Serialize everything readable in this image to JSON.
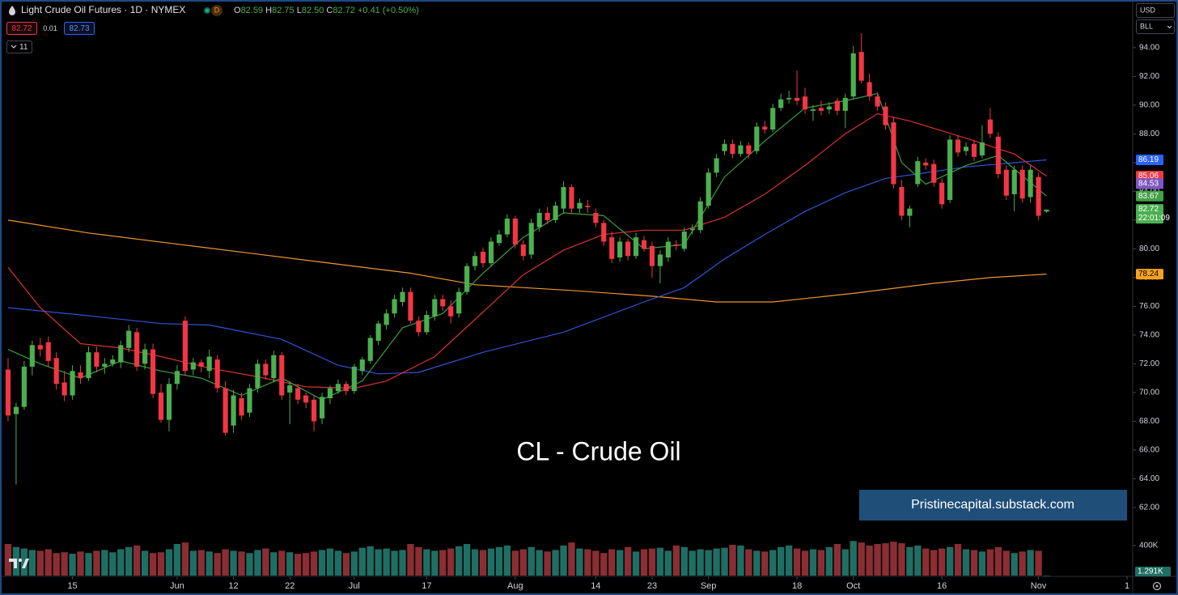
{
  "toolbar": {
    "title": "Light Crude Oil Futures · 1D · NYMEX",
    "interval_badge": "D",
    "ohlc": [
      {
        "label": "O",
        "value": "82.59"
      },
      {
        "label": "H",
        "value": "82.75"
      },
      {
        "label": "L",
        "value": "82.50"
      },
      {
        "label": "C",
        "value": "82.72"
      }
    ],
    "change": "+0.41 (+0.50%)",
    "bid": "82.72",
    "spread": "0.01",
    "ask": "82.73",
    "indicators_count": "11",
    "currency": "USD",
    "unit": "BLL"
  },
  "chart_data": {
    "type": "candlestick",
    "title": "CL - Crude Oil",
    "annotation": "Pristinecapital.substack.com",
    "up_color": "#4caf50",
    "down_color": "#f23645",
    "volume_up_color": "#1f6e64",
    "volume_down_color": "#8a2e33",
    "xlim": [
      -0.6,
      139.7
    ],
    "xticks": [
      {
        "value": 8,
        "label": "15"
      },
      {
        "value": 21,
        "label": "Jun"
      },
      {
        "value": 28,
        "label": "12"
      },
      {
        "value": 35,
        "label": "22"
      },
      {
        "value": 43,
        "label": "Jul"
      },
      {
        "value": 52,
        "label": "17"
      },
      {
        "value": 63,
        "label": "Aug"
      },
      {
        "value": 73,
        "label": "14"
      },
      {
        "value": 80,
        "label": "23"
      },
      {
        "value": 87,
        "label": "Sep"
      },
      {
        "value": 98,
        "label": "18"
      },
      {
        "value": 105,
        "label": "Oct"
      },
      {
        "value": 116,
        "label": "16"
      },
      {
        "value": 128,
        "label": "Nov"
      },
      {
        "value": 139,
        "label": "1"
      }
    ],
    "ylim": [
      60.7,
      97.2
    ],
    "yticks": [
      {
        "value": 62,
        "label": "62.00"
      },
      {
        "value": 64,
        "label": "64.00"
      },
      {
        "value": 66,
        "label": "66.00"
      },
      {
        "value": 68,
        "label": "68.00"
      },
      {
        "value": 70,
        "label": "70.00"
      },
      {
        "value": 72,
        "label": "72.00"
      },
      {
        "value": 74,
        "label": "74.00"
      },
      {
        "value": 76,
        "label": "76.00"
      },
      {
        "value": 78,
        "label": "78.00"
      },
      {
        "value": 80,
        "label": "80.00"
      },
      {
        "value": 82,
        "label": "82.00"
      },
      {
        "value": 84,
        "label": "84.00"
      },
      {
        "value": 86,
        "label": "86.00"
      },
      {
        "value": 88,
        "label": "88.00"
      },
      {
        "value": 90,
        "label": "90.00"
      },
      {
        "value": 92,
        "label": "92.00"
      },
      {
        "value": 94,
        "label": "94.00"
      }
    ],
    "candles": [
      [
        71.6,
        72.4,
        68.0,
        68.4
      ],
      [
        68.5,
        69.3,
        63.6,
        69.0
      ],
      [
        69.0,
        72.2,
        68.8,
        71.8
      ],
      [
        71.8,
        73.6,
        71.2,
        73.3
      ],
      [
        73.3,
        73.8,
        72.5,
        73.0
      ],
      [
        73.5,
        73.9,
        71.8,
        72.2
      ],
      [
        72.4,
        72.8,
        70.2,
        70.6
      ],
      [
        70.7,
        71.5,
        69.4,
        69.8
      ],
      [
        69.8,
        71.9,
        69.5,
        71.5
      ],
      [
        71.4,
        71.9,
        70.6,
        71.0
      ],
      [
        71.0,
        73.2,
        70.8,
        72.8
      ],
      [
        72.8,
        73.2,
        71.4,
        71.8
      ],
      [
        71.8,
        72.4,
        71.3,
        72.0
      ],
      [
        72.0,
        72.6,
        71.8,
        72.3
      ],
      [
        72.1,
        73.6,
        71.7,
        73.3
      ],
      [
        73.1,
        74.7,
        72.8,
        74.3
      ],
      [
        74.2,
        74.5,
        71.5,
        71.8
      ],
      [
        72.0,
        73.4,
        71.6,
        73.0
      ],
      [
        73.0,
        73.4,
        69.6,
        69.9
      ],
      [
        70.0,
        70.6,
        67.9,
        68.1
      ],
      [
        68.1,
        71.0,
        67.3,
        70.6
      ],
      [
        70.6,
        71.9,
        70.2,
        71.5
      ],
      [
        75.0,
        75.3,
        71.2,
        71.5
      ],
      [
        71.6,
        72.4,
        71.2,
        72.1
      ],
      [
        72.1,
        72.3,
        71.4,
        71.8
      ],
      [
        71.5,
        73.0,
        71.0,
        72.5
      ],
      [
        72.3,
        72.6,
        70.0,
        70.3
      ],
      [
        70.3,
        70.8,
        67.0,
        67.2
      ],
      [
        67.7,
        70.2,
        67.2,
        69.8
      ],
      [
        69.6,
        70.0,
        68.1,
        68.4
      ],
      [
        68.6,
        70.6,
        68.3,
        70.3
      ],
      [
        70.3,
        72.3,
        70.0,
        72.0
      ],
      [
        72.0,
        72.3,
        70.9,
        71.2
      ],
      [
        71.0,
        72.9,
        70.7,
        72.6
      ],
      [
        72.6,
        72.8,
        69.5,
        69.8
      ],
      [
        70.0,
        70.8,
        67.8,
        70.5
      ],
      [
        70.3,
        70.6,
        69.2,
        69.5
      ],
      [
        69.8,
        70.0,
        68.9,
        69.3
      ],
      [
        69.5,
        69.8,
        67.3,
        68.0
      ],
      [
        68.2,
        70.0,
        67.8,
        69.7
      ],
      [
        69.6,
        70.5,
        69.2,
        70.3
      ],
      [
        70.1,
        70.9,
        69.9,
        70.6
      ],
      [
        70.6,
        70.8,
        69.8,
        70.1
      ],
      [
        70.1,
        72.0,
        69.9,
        71.8
      ],
      [
        71.5,
        72.5,
        71.2,
        72.3
      ],
      [
        72.2,
        74.0,
        72.0,
        73.8
      ],
      [
        73.6,
        75.0,
        73.3,
        74.8
      ],
      [
        74.7,
        75.8,
        74.4,
        75.5
      ],
      [
        75.5,
        76.8,
        75.2,
        76.5
      ],
      [
        76.3,
        77.3,
        76.0,
        77.0
      ],
      [
        77.0,
        77.3,
        74.8,
        75.0
      ],
      [
        75.0,
        75.3,
        73.9,
        74.2
      ],
      [
        74.2,
        75.7,
        74.0,
        75.4
      ],
      [
        75.3,
        76.8,
        75.0,
        76.5
      ],
      [
        76.5,
        76.8,
        75.7,
        76.0
      ],
      [
        76.0,
        76.4,
        74.8,
        75.3
      ],
      [
        75.5,
        77.3,
        75.2,
        77.0
      ],
      [
        77.0,
        79.0,
        76.8,
        78.8
      ],
      [
        78.8,
        79.8,
        78.5,
        79.5
      ],
      [
        79.8,
        80.1,
        78.7,
        79.0
      ],
      [
        79.0,
        80.8,
        78.8,
        80.5
      ],
      [
        80.4,
        81.3,
        80.2,
        81.0
      ],
      [
        81.0,
        82.4,
        80.8,
        82.1
      ],
      [
        82.1,
        82.3,
        80.0,
        80.3
      ],
      [
        80.3,
        80.6,
        79.2,
        79.5
      ],
      [
        79.6,
        82.1,
        79.3,
        81.8
      ],
      [
        81.5,
        82.8,
        81.2,
        82.5
      ],
      [
        82.5,
        82.9,
        81.7,
        82.0
      ],
      [
        82.0,
        83.3,
        81.8,
        83.0
      ],
      [
        82.8,
        84.7,
        82.5,
        84.3
      ],
      [
        84.3,
        84.5,
        82.5,
        82.8
      ],
      [
        82.8,
        83.5,
        82.5,
        83.2
      ],
      [
        83.0,
        83.4,
        82.5,
        82.9
      ],
      [
        82.5,
        82.8,
        81.5,
        81.8
      ],
      [
        81.8,
        82.0,
        80.2,
        80.5
      ],
      [
        80.8,
        81.2,
        79.0,
        79.3
      ],
      [
        79.4,
        80.8,
        79.1,
        80.5
      ],
      [
        80.5,
        80.7,
        79.2,
        79.5
      ],
      [
        79.5,
        81.1,
        79.3,
        80.8
      ],
      [
        80.6,
        80.9,
        79.8,
        80.0
      ],
      [
        80.2,
        80.5,
        78.0,
        78.8
      ],
      [
        78.8,
        79.9,
        77.6,
        79.6
      ],
      [
        79.4,
        80.8,
        79.1,
        80.5
      ],
      [
        80.3,
        80.6,
        79.9,
        80.2
      ],
      [
        80.0,
        81.5,
        79.8,
        81.2
      ],
      [
        81.3,
        81.7,
        81.0,
        81.4
      ],
      [
        81.3,
        83.6,
        81.1,
        83.3
      ],
      [
        83.0,
        85.6,
        82.8,
        85.3
      ],
      [
        85.3,
        86.6,
        85.0,
        86.3
      ],
      [
        86.8,
        87.6,
        86.5,
        87.3
      ],
      [
        87.3,
        87.6,
        86.3,
        86.6
      ],
      [
        86.6,
        87.5,
        86.4,
        87.2
      ],
      [
        87.2,
        87.4,
        86.3,
        86.6
      ],
      [
        86.8,
        88.8,
        86.6,
        88.5
      ],
      [
        88.5,
        88.9,
        88.0,
        88.3
      ],
      [
        88.3,
        90.1,
        88.1,
        89.8
      ],
      [
        89.8,
        90.8,
        89.6,
        90.4
      ],
      [
        90.4,
        91.0,
        90.1,
        90.5
      ],
      [
        90.5,
        92.4,
        90.0,
        90.3
      ],
      [
        90.6,
        91.2,
        89.4,
        89.7
      ],
      [
        89.6,
        90.0,
        88.9,
        89.7
      ],
      [
        89.8,
        90.3,
        89.3,
        89.6
      ],
      [
        89.7,
        90.2,
        89.4,
        89.9
      ],
      [
        90.3,
        90.5,
        89.3,
        89.6
      ],
      [
        89.6,
        90.8,
        88.4,
        90.5
      ],
      [
        90.6,
        94.1,
        90.4,
        93.6
      ],
      [
        93.7,
        95.0,
        91.5,
        91.7
      ],
      [
        91.6,
        92.2,
        90.3,
        90.6
      ],
      [
        90.6,
        90.9,
        89.6,
        89.9
      ],
      [
        89.9,
        90.2,
        88.3,
        88.6
      ],
      [
        88.8,
        89.2,
        84.2,
        84.5
      ],
      [
        84.3,
        84.8,
        82.0,
        82.3
      ],
      [
        82.3,
        83.0,
        81.5,
        82.8
      ],
      [
        84.5,
        86.4,
        84.3,
        86.1
      ],
      [
        86.0,
        86.3,
        85.5,
        85.8
      ],
      [
        85.9,
        86.2,
        84.3,
        84.6
      ],
      [
        84.6,
        84.9,
        82.8,
        83.1
      ],
      [
        83.4,
        87.9,
        83.2,
        87.6
      ],
      [
        87.6,
        87.9,
        86.4,
        86.7
      ],
      [
        86.8,
        87.4,
        86.5,
        87.1
      ],
      [
        87.3,
        87.6,
        86.1,
        86.4
      ],
      [
        86.5,
        88.6,
        86.3,
        87.4
      ],
      [
        89.0,
        89.8,
        87.7,
        88.0
      ],
      [
        87.8,
        88.1,
        84.9,
        85.2
      ],
      [
        85.5,
        85.8,
        83.4,
        83.7
      ],
      [
        83.8,
        85.8,
        82.6,
        85.5
      ],
      [
        85.5,
        85.8,
        83.2,
        83.5
      ],
      [
        83.6,
        85.8,
        83.2,
        85.5
      ],
      [
        85.0,
        85.3,
        82.0,
        82.3
      ],
      [
        82.59,
        82.75,
        82.5,
        82.72
      ]
    ],
    "volume": [
      420000,
      380000,
      360000,
      340000,
      330000,
      350000,
      300000,
      310000,
      290000,
      320000,
      300000,
      330000,
      340000,
      310000,
      350000,
      380000,
      400000,
      330000,
      300000,
      310000,
      350000,
      420000,
      440000,
      330000,
      340000,
      320000,
      300000,
      350000,
      330000,
      320000,
      300000,
      340000,
      360000,
      310000,
      330000,
      310000,
      290000,
      300000,
      320000,
      340000,
      360000,
      330000,
      300000,
      320000,
      370000,
      390000,
      350000,
      360000,
      330000,
      340000,
      420000,
      380000,
      350000,
      330000,
      340000,
      360000,
      390000,
      420000,
      350000,
      340000,
      360000,
      380000,
      400000,
      330000,
      350000,
      380000,
      340000,
      320000,
      340000,
      400000,
      440000,
      360000,
      350000,
      330000,
      300000,
      350000,
      340000,
      380000,
      320000,
      350000,
      360000,
      370000,
      330000,
      400000,
      380000,
      330000,
      350000,
      340000,
      360000,
      370000,
      410000,
      400000,
      350000,
      330000,
      320000,
      340000,
      380000,
      400000,
      360000,
      330000,
      350000,
      340000,
      380000,
      420000,
      350000,
      460000,
      440000,
      400000,
      420000,
      430000,
      450000,
      430000,
      380000,
      400000,
      360000,
      340000,
      360000,
      380000,
      420000,
      350000,
      340000,
      320000,
      350000,
      380000,
      330000,
      300000,
      320000,
      340000,
      330000,
      1291
    ],
    "volume_ylim": [
      0,
      560000
    ],
    "volume_yticks": [
      {
        "value": 400000,
        "label": "400K"
      }
    ],
    "volume_last_label": "1.291K",
    "moving_averages": [
      {
        "color": "#f0962c",
        "x": [
          0,
          10,
          20,
          30,
          40,
          50,
          58,
          70,
          80,
          88,
          95,
          105,
          115,
          122,
          129
        ],
        "values": [
          82.0,
          81.1,
          80.4,
          79.7,
          79.0,
          78.3,
          77.5,
          77.1,
          76.7,
          76.3,
          76.3,
          76.9,
          77.6,
          78.0,
          78.24
        ]
      },
      {
        "color": "#2f54d6",
        "x": [
          0,
          9,
          19,
          25,
          34,
          41,
          46,
          51,
          59,
          69,
          79,
          84,
          89,
          94,
          99,
          104,
          109,
          119,
          129
        ],
        "values": [
          75.9,
          75.4,
          74.8,
          74.7,
          73.7,
          71.9,
          71.3,
          71.4,
          72.8,
          74.2,
          76.3,
          77.3,
          79.3,
          81.0,
          82.6,
          83.9,
          84.9,
          85.7,
          86.19
        ]
      },
      {
        "color": "#d8332f",
        "x": [
          0,
          4,
          9,
          14,
          19,
          25,
          31,
          37,
          43,
          47,
          53,
          59,
          64,
          69,
          74,
          79,
          84,
          89,
          94,
          99,
          104,
          108,
          112,
          119,
          125,
          129
        ],
        "values": [
          78.7,
          75.9,
          73.4,
          73.1,
          72.5,
          71.7,
          71.1,
          70.4,
          70.3,
          70.8,
          72.5,
          75.6,
          78.2,
          79.9,
          81.0,
          81.3,
          81.3,
          82.2,
          83.8,
          85.8,
          88.0,
          89.4,
          88.9,
          87.7,
          86.6,
          85.06
        ]
      },
      {
        "color": "#3c9e3c",
        "x": [
          0,
          4,
          9,
          14,
          19,
          24,
          29,
          34,
          39,
          44,
          49,
          54,
          59,
          64,
          69,
          74,
          79,
          84,
          89,
          94,
          99,
          104,
          108,
          111,
          114,
          119,
          123,
          129
        ],
        "values": [
          73.0,
          72.0,
          71.0,
          72.2,
          71.5,
          71.0,
          69.8,
          71.0,
          69.5,
          70.8,
          74.5,
          75.5,
          78.3,
          80.8,
          82.5,
          82.3,
          80.0,
          80.3,
          85.0,
          87.5,
          89.8,
          90.3,
          90.8,
          86.0,
          84.5,
          85.8,
          86.5,
          83.67
        ]
      }
    ],
    "price_labels": [
      {
        "value": 86.19,
        "color": "#2962ff"
      },
      {
        "value": 85.06,
        "color": "#f23645"
      },
      {
        "value": 84.53,
        "color": "#7e57c2"
      },
      {
        "value": 83.67,
        "color": "#43a047"
      },
      {
        "value": 82.72,
        "color": "#4caf50",
        "countdown": "22:01:09"
      },
      {
        "value": 78.24,
        "color": "#f7a21b"
      }
    ]
  }
}
